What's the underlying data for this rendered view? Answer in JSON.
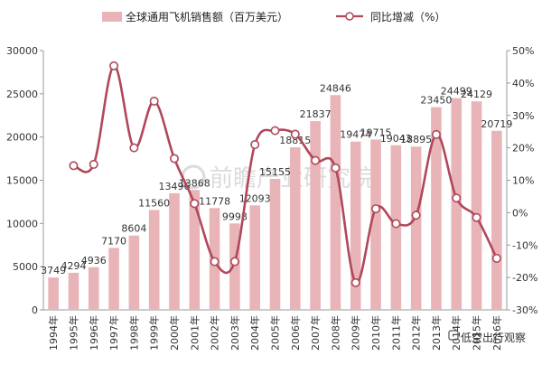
{
  "chart_data": {
    "type": "bar",
    "categories": [
      "1994年",
      "1995年",
      "1996年",
      "1997年",
      "1998年",
      "1999年",
      "2000年",
      "2001年",
      "2002年",
      "2003年",
      "2004年",
      "2005年",
      "2006年",
      "2007年",
      "2008年",
      "2009年",
      "2010年",
      "2011年",
      "2012年",
      "2013年",
      "2014年",
      "2015年",
      "2016年"
    ],
    "series": [
      {
        "name": "全球通用飞机销售额（百万美元）",
        "type": "bar",
        "axis": "left",
        "values": [
          3749,
          4294,
          4936,
          7170,
          8604,
          11560,
          13496,
          13868,
          11778,
          9998,
          12093,
          15155,
          18815,
          21837,
          24846,
          19474,
          19715,
          19043,
          18895,
          23450,
          24499,
          24129,
          20719
        ],
        "labels": [
          "3749",
          "4294",
          "4936",
          "7170",
          "8604",
          "11560",
          "13496",
          "13868",
          "11778",
          "9998",
          "12093",
          "15155",
          "18815",
          "21837",
          "24846",
          "19474",
          "19715",
          "19043",
          "18895",
          "23450",
          "24499",
          "24129",
          "20719"
        ]
      },
      {
        "name": "同比增减（%）",
        "type": "line",
        "axis": "right",
        "values": [
          null,
          14.5,
          14.9,
          45.3,
          20.0,
          34.4,
          16.7,
          2.8,
          -15.1,
          -15.1,
          21.0,
          25.3,
          24.2,
          16.1,
          13.8,
          -21.6,
          1.2,
          -3.4,
          -0.8,
          24.1,
          4.5,
          -1.5,
          -14.1
        ]
      }
    ],
    "ylim_left": [
      0,
      30000
    ],
    "yticks_left": [
      "0",
      "5000",
      "10000",
      "15000",
      "20000",
      "25000",
      "30000"
    ],
    "ylim_right": [
      -30,
      50
    ],
    "yticks_right": [
      "-30%",
      "-20%",
      "-10%",
      "0%",
      "10%",
      "20%",
      "30%",
      "40%",
      "50%"
    ],
    "legend_position": "top",
    "grid": false,
    "colors": {
      "bar": "#E8B4B8",
      "line": "#B0485A",
      "marker_fill": "#ffffff"
    }
  },
  "watermark": {
    "main": "前瞻产业研究院",
    "corner": "低空出行观察"
  }
}
